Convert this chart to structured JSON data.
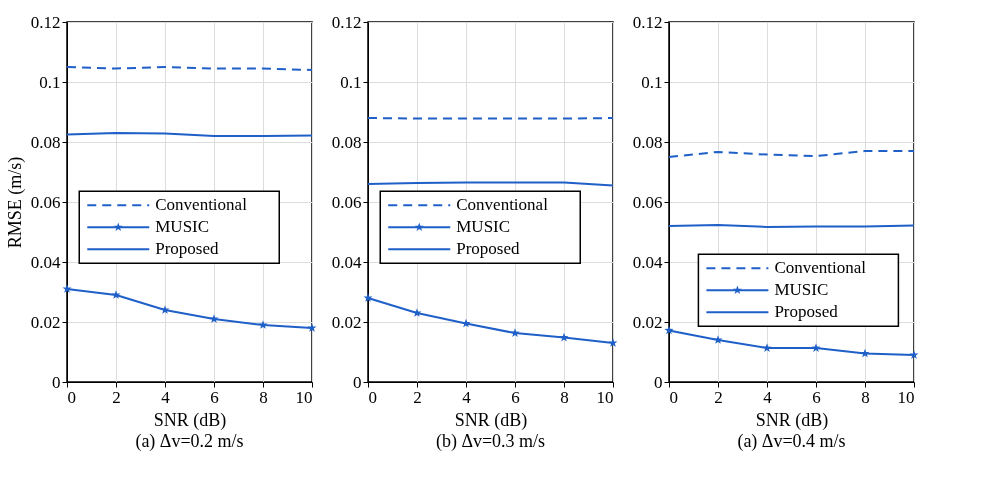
{
  "chart_data": [
    {
      "type": "line",
      "title": "(a) Δv=0.2 m/s",
      "xlabel": "SNR (dB)",
      "ylabel": "RMSE (m/s)",
      "x": [
        0,
        2,
        4,
        6,
        8,
        10
      ],
      "xlim": [
        0,
        10
      ],
      "ylim": [
        0,
        0.12
      ],
      "xticks": [
        0,
        2,
        4,
        6,
        8,
        10
      ],
      "yticks": [
        0,
        0.02,
        0.04,
        0.06,
        0.08,
        0.1,
        0.12
      ],
      "grid": true,
      "legend": "center",
      "series": [
        {
          "name": "Conventional",
          "color": "#1f5fc8",
          "line_style": "dashed",
          "marker": "none",
          "values": [
            0.105,
            0.1045,
            0.105,
            0.1045,
            0.1045,
            0.104
          ]
        },
        {
          "name": "MUSIC",
          "color": "#1f5fc8",
          "line_style": "solid",
          "marker": "star",
          "values": [
            0.031,
            0.029,
            0.024,
            0.021,
            0.019,
            0.018
          ]
        },
        {
          "name": "Proposed",
          "color": "#1f5fc8",
          "line_style": "solid",
          "marker": "none",
          "values": [
            0.0825,
            0.083,
            0.0828,
            0.082,
            0.082,
            0.0822
          ]
        }
      ]
    },
    {
      "type": "line",
      "title": "(b) Δv=0.3 m/s",
      "xlabel": "SNR (dB)",
      "x": [
        0,
        2,
        4,
        6,
        8,
        10
      ],
      "xlim": [
        0,
        10
      ],
      "ylim": [
        0,
        0.12
      ],
      "xticks": [
        0,
        2,
        4,
        6,
        8,
        10
      ],
      "yticks": [
        0,
        0.02,
        0.04,
        0.06,
        0.08,
        0.1,
        0.12
      ],
      "grid": true,
      "legend": "center",
      "series": [
        {
          "name": "Conventional",
          "color": "#1f5fc8",
          "line_style": "dashed",
          "marker": "none",
          "values": [
            0.088,
            0.0878,
            0.0878,
            0.0878,
            0.0878,
            0.088
          ]
        },
        {
          "name": "MUSIC",
          "color": "#1f5fc8",
          "line_style": "solid",
          "marker": "star",
          "values": [
            0.028,
            0.023,
            0.0195,
            0.0163,
            0.0148,
            0.013
          ]
        },
        {
          "name": "Proposed",
          "color": "#1f5fc8",
          "line_style": "solid",
          "marker": "none",
          "values": [
            0.066,
            0.0663,
            0.0665,
            0.0665,
            0.0665,
            0.0655
          ]
        }
      ]
    },
    {
      "type": "line",
      "title": "(a) Δv=0.4 m/s",
      "xlabel": "SNR (dB)",
      "x": [
        0,
        2,
        4,
        6,
        8,
        10
      ],
      "xlim": [
        0,
        10
      ],
      "ylim": [
        0,
        0.12
      ],
      "xticks": [
        0,
        2,
        4,
        6,
        8,
        10
      ],
      "yticks": [
        0,
        0.02,
        0.04,
        0.06,
        0.08,
        0.1,
        0.12
      ],
      "grid": true,
      "legend": "bottom right",
      "series": [
        {
          "name": "Conventional",
          "color": "#1f5fc8",
          "line_style": "dashed",
          "marker": "none",
          "values": [
            0.075,
            0.0767,
            0.0758,
            0.0753,
            0.077,
            0.077
          ]
        },
        {
          "name": "MUSIC",
          "color": "#1f5fc8",
          "line_style": "solid",
          "marker": "star",
          "values": [
            0.0172,
            0.014,
            0.0113,
            0.0113,
            0.0095,
            0.009
          ]
        },
        {
          "name": "Proposed",
          "color": "#1f5fc8",
          "line_style": "solid",
          "marker": "none",
          "values": [
            0.052,
            0.0523,
            0.0517,
            0.0518,
            0.0518,
            0.0522
          ]
        }
      ]
    }
  ]
}
